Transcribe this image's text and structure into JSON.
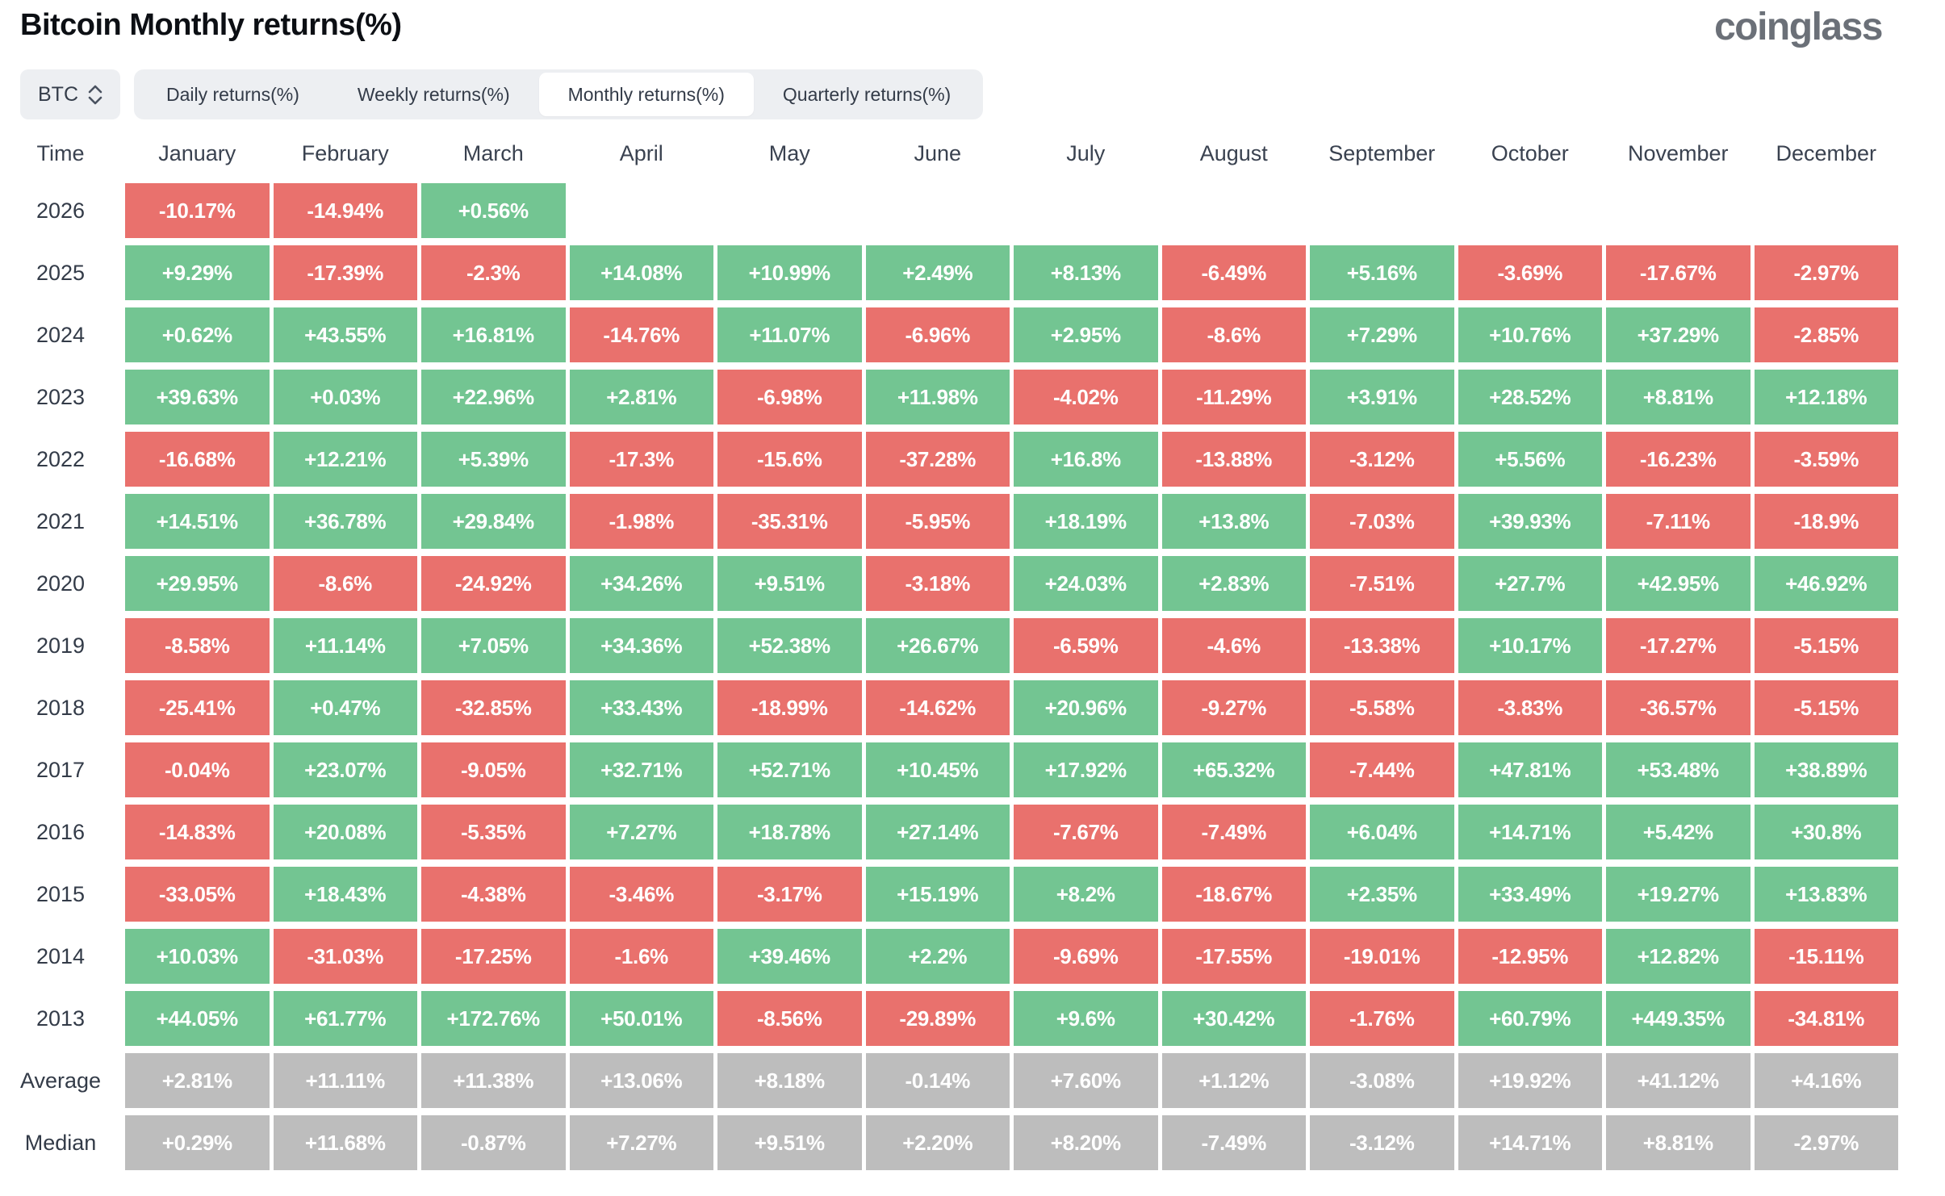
{
  "header": {
    "title": "Bitcoin Monthly returns(%)",
    "logo_text": "coinglass"
  },
  "controls": {
    "symbol_select": {
      "value": "BTC",
      "icon": "up-down-chevron-icon"
    },
    "tabs": [
      {
        "label": "Daily returns(%)",
        "active": false
      },
      {
        "label": "Weekly returns(%)",
        "active": false
      },
      {
        "label": "Monthly returns(%)",
        "active": true
      },
      {
        "label": "Quarterly returns(%)",
        "active": false
      }
    ]
  },
  "colors": {
    "positive": "#73c592",
    "negative": "#e9716d",
    "neutral": "#bdbdbd",
    "header_text": "#3a4250",
    "title_text": "#0c0f14",
    "logo_text": "#6b7078",
    "control_bg": "#edeff2"
  },
  "chart_data": {
    "type": "heatmap",
    "title": "Bitcoin Monthly returns(%)",
    "columns": [
      "Time",
      "January",
      "February",
      "March",
      "April",
      "May",
      "June",
      "July",
      "August",
      "September",
      "October",
      "November",
      "December"
    ],
    "rows": [
      {
        "label": "2026",
        "summary": false,
        "values": [
          "-10.17%",
          "-14.94%",
          "+0.56%",
          "",
          "",
          "",
          "",
          "",
          "",
          "",
          "",
          ""
        ]
      },
      {
        "label": "2025",
        "summary": false,
        "values": [
          "+9.29%",
          "-17.39%",
          "-2.3%",
          "+14.08%",
          "+10.99%",
          "+2.49%",
          "+8.13%",
          "-6.49%",
          "+5.16%",
          "-3.69%",
          "-17.67%",
          "-2.97%"
        ]
      },
      {
        "label": "2024",
        "summary": false,
        "values": [
          "+0.62%",
          "+43.55%",
          "+16.81%",
          "-14.76%",
          "+11.07%",
          "-6.96%",
          "+2.95%",
          "-8.6%",
          "+7.29%",
          "+10.76%",
          "+37.29%",
          "-2.85%"
        ]
      },
      {
        "label": "2023",
        "summary": false,
        "values": [
          "+39.63%",
          "+0.03%",
          "+22.96%",
          "+2.81%",
          "-6.98%",
          "+11.98%",
          "-4.02%",
          "-11.29%",
          "+3.91%",
          "+28.52%",
          "+8.81%",
          "+12.18%"
        ]
      },
      {
        "label": "2022",
        "summary": false,
        "values": [
          "-16.68%",
          "+12.21%",
          "+5.39%",
          "-17.3%",
          "-15.6%",
          "-37.28%",
          "+16.8%",
          "-13.88%",
          "-3.12%",
          "+5.56%",
          "-16.23%",
          "-3.59%"
        ]
      },
      {
        "label": "2021",
        "summary": false,
        "values": [
          "+14.51%",
          "+36.78%",
          "+29.84%",
          "-1.98%",
          "-35.31%",
          "-5.95%",
          "+18.19%",
          "+13.8%",
          "-7.03%",
          "+39.93%",
          "-7.11%",
          "-18.9%"
        ]
      },
      {
        "label": "2020",
        "summary": false,
        "values": [
          "+29.95%",
          "-8.6%",
          "-24.92%",
          "+34.26%",
          "+9.51%",
          "-3.18%",
          "+24.03%",
          "+2.83%",
          "-7.51%",
          "+27.7%",
          "+42.95%",
          "+46.92%"
        ]
      },
      {
        "label": "2019",
        "summary": false,
        "values": [
          "-8.58%",
          "+11.14%",
          "+7.05%",
          "+34.36%",
          "+52.38%",
          "+26.67%",
          "-6.59%",
          "-4.6%",
          "-13.38%",
          "+10.17%",
          "-17.27%",
          "-5.15%"
        ]
      },
      {
        "label": "2018",
        "summary": false,
        "values": [
          "-25.41%",
          "+0.47%",
          "-32.85%",
          "+33.43%",
          "-18.99%",
          "-14.62%",
          "+20.96%",
          "-9.27%",
          "-5.58%",
          "-3.83%",
          "-36.57%",
          "-5.15%"
        ]
      },
      {
        "label": "2017",
        "summary": false,
        "values": [
          "-0.04%",
          "+23.07%",
          "-9.05%",
          "+32.71%",
          "+52.71%",
          "+10.45%",
          "+17.92%",
          "+65.32%",
          "-7.44%",
          "+47.81%",
          "+53.48%",
          "+38.89%"
        ]
      },
      {
        "label": "2016",
        "summary": false,
        "values": [
          "-14.83%",
          "+20.08%",
          "-5.35%",
          "+7.27%",
          "+18.78%",
          "+27.14%",
          "-7.67%",
          "-7.49%",
          "+6.04%",
          "+14.71%",
          "+5.42%",
          "+30.8%"
        ]
      },
      {
        "label": "2015",
        "summary": false,
        "values": [
          "-33.05%",
          "+18.43%",
          "-4.38%",
          "-3.46%",
          "-3.17%",
          "+15.19%",
          "+8.2%",
          "-18.67%",
          "+2.35%",
          "+33.49%",
          "+19.27%",
          "+13.83%"
        ]
      },
      {
        "label": "2014",
        "summary": false,
        "values": [
          "+10.03%",
          "-31.03%",
          "-17.25%",
          "-1.6%",
          "+39.46%",
          "+2.2%",
          "-9.69%",
          "-17.55%",
          "-19.01%",
          "-12.95%",
          "+12.82%",
          "-15.11%"
        ]
      },
      {
        "label": "2013",
        "summary": false,
        "values": [
          "+44.05%",
          "+61.77%",
          "+172.76%",
          "+50.01%",
          "-8.56%",
          "-29.89%",
          "+9.6%",
          "+30.42%",
          "-1.76%",
          "+60.79%",
          "+449.35%",
          "-34.81%"
        ]
      },
      {
        "label": "Average",
        "summary": true,
        "values": [
          "+2.81%",
          "+11.11%",
          "+11.38%",
          "+13.06%",
          "+8.18%",
          "-0.14%",
          "+7.60%",
          "+1.12%",
          "-3.08%",
          "+19.92%",
          "+41.12%",
          "+4.16%"
        ]
      },
      {
        "label": "Median",
        "summary": true,
        "values": [
          "+0.29%",
          "+11.68%",
          "-0.87%",
          "+7.27%",
          "+9.51%",
          "+2.20%",
          "+8.20%",
          "-7.49%",
          "-3.12%",
          "+14.71%",
          "+8.81%",
          "-2.97%"
        ]
      }
    ],
    "legend": {
      "positive_color_meaning": "positive monthly return",
      "negative_color_meaning": "negative monthly return",
      "neutral_color_meaning": "summary row (Average/Median)"
    }
  }
}
